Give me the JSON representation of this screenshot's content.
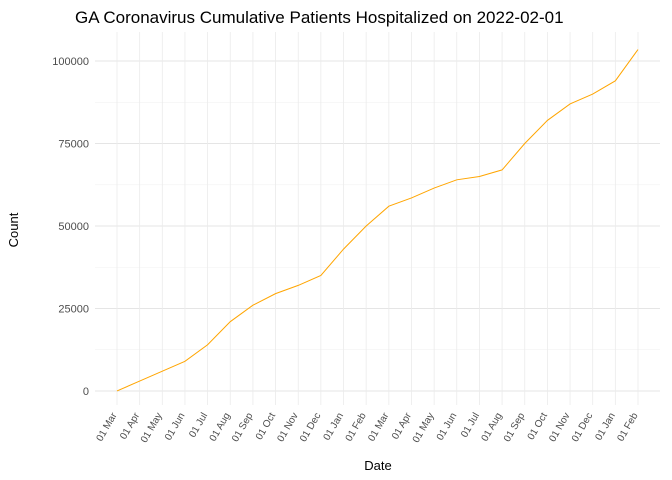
{
  "chart_data": {
    "type": "line",
    "title": "GA Coronavirus Cumulative Patients Hospitalized on 2022-02-01",
    "x_label": "Date",
    "y_label": "Count",
    "categories": [
      "01 Mar",
      "01 Apr",
      "01 May",
      "01 Jun",
      "01 Jul",
      "01 Aug",
      "01 Sep",
      "01 Oct",
      "01 Nov",
      "01 Dec",
      "01 Jan",
      "01 Feb",
      "01 Mar",
      "01 Apr",
      "01 May",
      "01 Jun",
      "01 Jul",
      "01 Aug",
      "01 Sep",
      "01 Oct",
      "01 Nov",
      "01 Dec",
      "01 Jan",
      "01 Feb"
    ],
    "series": [
      {
        "name": "Hospitalized",
        "color": "#ffa500",
        "values": [
          0,
          3000,
          6000,
          9000,
          14000,
          21000,
          26000,
          29500,
          32000,
          35000,
          43000,
          50000,
          56000,
          58500,
          61500,
          64000,
          65000,
          67000,
          75000,
          82000,
          87000,
          90000,
          94000,
          103500
        ]
      }
    ],
    "ylim": [
      -4250,
      108800
    ],
    "yticks": [
      0,
      25000,
      50000,
      75000,
      100000
    ],
    "grid": true
  }
}
